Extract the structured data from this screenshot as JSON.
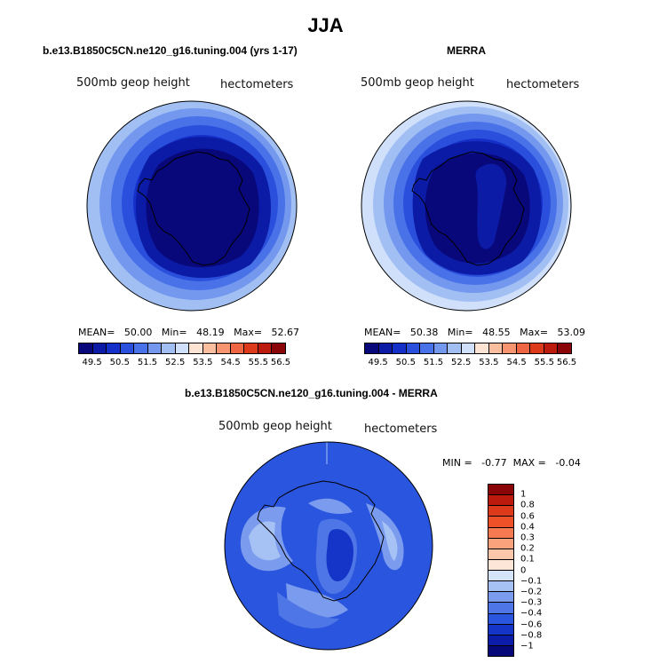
{
  "main_title": "JJA",
  "panels": [
    {
      "title": "b.e13.B1850C5CN.ne120_g16.tuning.004 (yrs 1-17)",
      "left_label": "500mb geop height",
      "right_label": "hectometers",
      "stats": "MEAN=   50.00   Min=   48.19   Max=   52.67",
      "colorbar_labels": [
        "49.5",
        "50.5",
        "51.5",
        "52.5",
        "53.5",
        "54.5",
        "55.5",
        "56.5"
      ]
    },
    {
      "title": "MERRA",
      "left_label": "500mb geop height",
      "right_label": "hectometers",
      "stats": "MEAN=   50.38   Min=   48.55   Max=   53.09",
      "colorbar_labels": [
        "49.5",
        "50.5",
        "51.5",
        "52.5",
        "53.5",
        "54.5",
        "55.5",
        "56.5"
      ]
    },
    {
      "title": "b.e13.B1850C5CN.ne120_g16.tuning.004 - MERRA",
      "left_label": "500mb geop height",
      "right_label": "hectometers",
      "stats": "MIN =   -0.77  MAX =   -0.04",
      "colorbar_labels": [
        "1",
        "0.8",
        "0.6",
        "0.4",
        "0.3",
        "0.2",
        "0.1",
        "0",
        "−0.1",
        "−0.2",
        "−0.3",
        "−0.4",
        "−0.6",
        "−0.8",
        "−1"
      ]
    }
  ],
  "colors": {
    "h_colorbar": [
      "#08087a",
      "#0b1ba6",
      "#1530c8",
      "#2a4fdc",
      "#4a72e8",
      "#7398ee",
      "#a2bff4",
      "#d0e0fa",
      "#fde3d3",
      "#fbbe9e",
      "#f69570",
      "#ee6644",
      "#dd3a1c",
      "#bb1a0c",
      "#8a0508"
    ],
    "v_colorbar": [
      "#8a0508",
      "#bb1a0c",
      "#dd3a1c",
      "#ee5028",
      "#f57a52",
      "#f9a27c",
      "#fcc6aa",
      "#fde6d8",
      "#d4e4fb",
      "#a6c1f4",
      "#7b9cee",
      "#4f76e6",
      "#2a55de",
      "#1534c8",
      "#0a1ca8",
      "#06087a"
    ]
  },
  "chart_data": [
    {
      "type": "heatmap",
      "title": "b.e13.B1850C5CN.ne120_g16.tuning.004 (yrs 1-17)",
      "projection": "south-polar-stereographic",
      "variable": "500mb geop height",
      "units": "hectometers",
      "mean": 50.0,
      "min": 48.19,
      "max": 52.67,
      "contour_levels": [
        49.5,
        50,
        50.5,
        51,
        51.5,
        52,
        52.5,
        53,
        53.5,
        54,
        54.5,
        55,
        55.5,
        56,
        56.5
      ],
      "ring_fill_order_outer_to_inner": [
        52.5,
        52.0,
        51.5,
        51.0,
        50.5,
        50.0,
        49.5,
        49.0
      ]
    },
    {
      "type": "heatmap",
      "title": "MERRA",
      "projection": "south-polar-stereographic",
      "variable": "500mb geop height",
      "units": "hectometers",
      "mean": 50.38,
      "min": 48.55,
      "max": 53.09,
      "contour_levels": [
        49.5,
        50,
        50.5,
        51,
        51.5,
        52,
        52.5,
        53,
        53.5,
        54,
        54.5,
        55,
        55.5,
        56,
        56.5
      ],
      "ring_fill_order_outer_to_inner": [
        53.0,
        52.5,
        52.0,
        51.5,
        51.0,
        50.5,
        50.0,
        49.5
      ]
    },
    {
      "type": "heatmap",
      "title": "b.e13.B1850C5CN.ne120_g16.tuning.004 - MERRA",
      "projection": "south-polar-stereographic",
      "variable": "500mb geop height",
      "units": "hectometers",
      "min": -0.77,
      "max": -0.04,
      "contour_levels": [
        -1,
        -0.8,
        -0.6,
        -0.4,
        -0.3,
        -0.2,
        -0.1,
        0,
        0.1,
        0.2,
        0.3,
        0.4,
        0.6,
        0.8,
        1
      ]
    }
  ]
}
